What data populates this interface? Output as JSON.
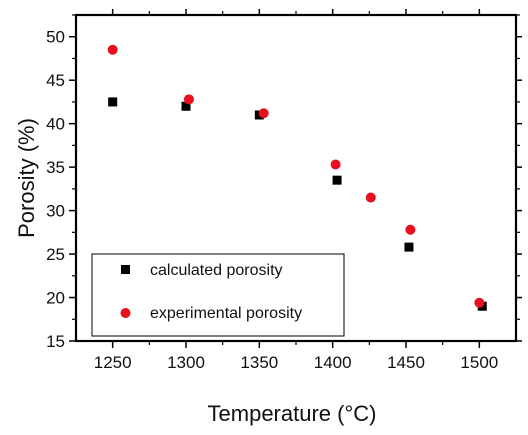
{
  "chart_data": {
    "type": "scatter",
    "title": "",
    "xlabel": "Temperature (°C)",
    "ylabel": "Porosity (%)",
    "xlim": [
      1225,
      1525
    ],
    "ylim": [
      15,
      52.5
    ],
    "xticks": [
      1250,
      1300,
      1350,
      1400,
      1450,
      1500
    ],
    "yticks": [
      15,
      20,
      25,
      30,
      35,
      40,
      45,
      50
    ],
    "grid": false,
    "legend_position": "bottom-left",
    "series": [
      {
        "name": "calculated porosity",
        "marker": "square",
        "color": "#000000",
        "points": [
          {
            "x": 1250,
            "y": 42.5
          },
          {
            "x": 1300,
            "y": 42.0
          },
          {
            "x": 1350,
            "y": 41.0
          },
          {
            "x": 1403,
            "y": 33.5
          },
          {
            "x": 1452,
            "y": 25.8
          },
          {
            "x": 1502,
            "y": 19.0
          }
        ]
      },
      {
        "name": "experimental porosity",
        "marker": "circle",
        "color": "#e8101e",
        "points": [
          {
            "x": 1250,
            "y": 48.5
          },
          {
            "x": 1302,
            "y": 42.8
          },
          {
            "x": 1353,
            "y": 41.2
          },
          {
            "x": 1402,
            "y": 35.3
          },
          {
            "x": 1426,
            "y": 31.5
          },
          {
            "x": 1453,
            "y": 27.8
          },
          {
            "x": 1500,
            "y": 19.4
          }
        ]
      }
    ]
  }
}
